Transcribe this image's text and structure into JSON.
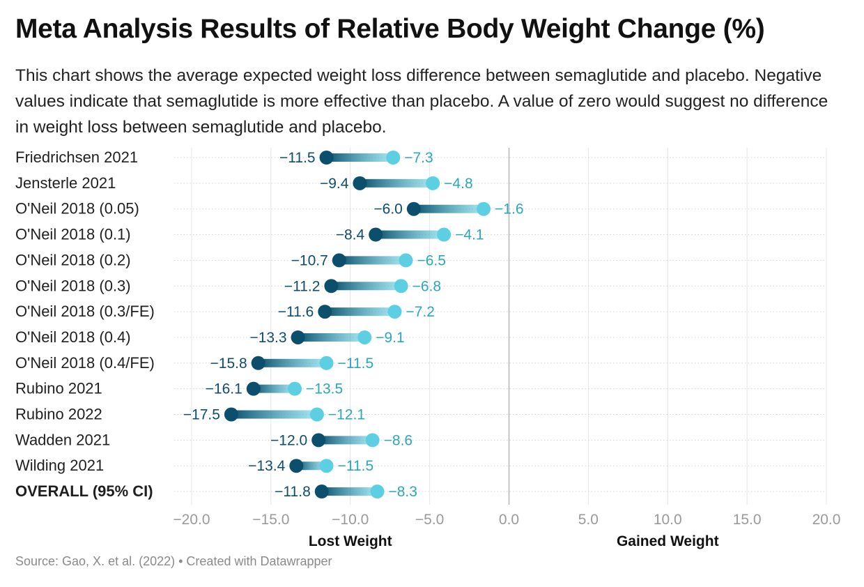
{
  "title": "Meta Analysis Results of Relative Body Weight Change (%)",
  "subtitle": "This chart shows the average expected weight loss difference between semaglutide and placebo. Negative values indicate that semaglutide is more effective than placebo. A value of zero would suggest no difference in weight loss between semaglutide and placebo.",
  "source": "Source: Gao, X. et al. (2022) • Created with Datawrapper",
  "colors": {
    "semaglutide_dot": "#0b4f6c",
    "placebo_dot": "#5ccfe3",
    "semaglutide_label": "#0e4d6b",
    "placebo_label": "#2aa6bd",
    "zero_line": "#b5b5b5",
    "grid": "#e4e4e4"
  },
  "chart_data": {
    "type": "dot-range",
    "xlim": [
      -20,
      20
    ],
    "x_ticks": [
      -20,
      -15,
      -10,
      -5,
      0,
      5,
      10,
      15,
      20
    ],
    "x_tick_labels": [
      "−20.0",
      "−15.0",
      "−10.0",
      "−5.0",
      "0.0",
      "5.0",
      "10.0",
      "15.0",
      "20.0"
    ],
    "axis_captions": [
      {
        "text": "Lost Weight",
        "x": -10
      },
      {
        "text": "Gained Weight",
        "x": 10
      }
    ],
    "grid": true,
    "rows": [
      {
        "label": "Friedrichsen 2021",
        "low": -11.5,
        "high": -7.3,
        "low_label": "−11.5",
        "high_label": "−7.3",
        "bold": false
      },
      {
        "label": "Jensterle 2021",
        "low": -9.4,
        "high": -4.8,
        "low_label": "−9.4",
        "high_label": "−4.8",
        "bold": false
      },
      {
        "label": "O'Neil 2018 (0.05)",
        "low": -6.0,
        "high": -1.6,
        "low_label": "−6.0",
        "high_label": "−1.6",
        "bold": false
      },
      {
        "label": "O'Neil 2018 (0.1)",
        "low": -8.4,
        "high": -4.1,
        "low_label": "−8.4",
        "high_label": "−4.1",
        "bold": false
      },
      {
        "label": "O'Neil 2018 (0.2)",
        "low": -10.7,
        "high": -6.5,
        "low_label": "−10.7",
        "high_label": "−6.5",
        "bold": false
      },
      {
        "label": "O'Neil 2018 (0.3)",
        "low": -11.2,
        "high": -6.8,
        "low_label": "−11.2",
        "high_label": "−6.8",
        "bold": false
      },
      {
        "label": "O'Neil 2018 (0.3/FE)",
        "low": -11.6,
        "high": -7.2,
        "low_label": "−11.6",
        "high_label": "−7.2",
        "bold": false
      },
      {
        "label": "O'Neil 2018 (0.4)",
        "low": -13.3,
        "high": -9.1,
        "low_label": "−13.3",
        "high_label": "−9.1",
        "bold": false
      },
      {
        "label": "O'Neil 2018 (0.4/FE)",
        "low": -15.8,
        "high": -11.5,
        "low_label": "−15.8",
        "high_label": "−11.5",
        "bold": false
      },
      {
        "label": "Rubino 2021",
        "low": -16.1,
        "high": -13.5,
        "low_label": "−16.1",
        "high_label": "−13.5",
        "bold": false
      },
      {
        "label": "Rubino 2022",
        "low": -17.5,
        "high": -12.1,
        "low_label": "−17.5",
        "high_label": "−12.1",
        "bold": false
      },
      {
        "label": "Wadden 2021",
        "low": -12.0,
        "high": -8.6,
        "low_label": "−12.0",
        "high_label": "−8.6",
        "bold": false
      },
      {
        "label": "Wilding 2021",
        "low": -13.4,
        "high": -11.5,
        "low_label": "−13.4",
        "high_label": "−11.5",
        "bold": false
      },
      {
        "label": "OVERALL (95% CI)",
        "low": -11.8,
        "high": -8.3,
        "low_label": "−11.8",
        "high_label": "−8.3",
        "bold": true
      }
    ]
  }
}
